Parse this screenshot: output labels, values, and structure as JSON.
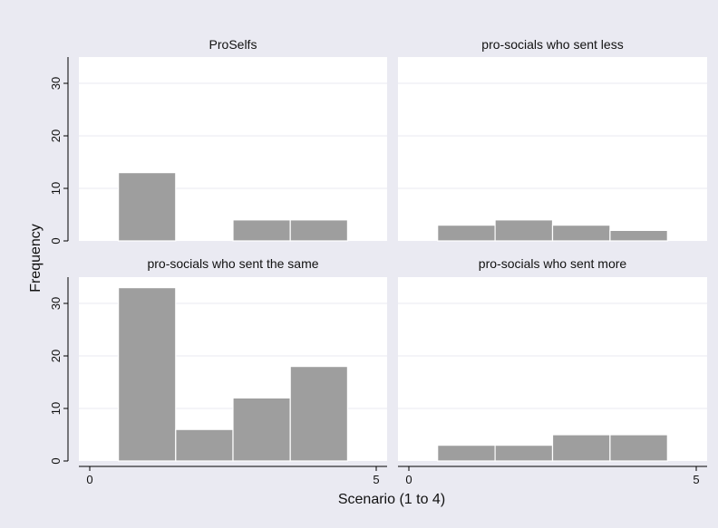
{
  "colors": {
    "background": "#eaeaf2",
    "plot_background": "#ffffff",
    "bar_fill": "#9e9e9e",
    "bar_stroke": "#ffffff",
    "grid": "#eaeaf2",
    "axis": "#000000"
  },
  "chart_data": {
    "type": "bar",
    "xlabel": "Scenario (1 to 4)",
    "ylabel": "Frequency",
    "xlim": [
      0,
      5
    ],
    "ylim": [
      0,
      35
    ],
    "x_ticks": [
      0,
      5
    ],
    "y_ticks": [
      0,
      10,
      20,
      30
    ],
    "bar_width": 1,
    "grid": true,
    "panels": [
      {
        "title": "ProSelfs",
        "x": [
          1,
          2,
          3,
          4
        ],
        "values": [
          13,
          0,
          4,
          4
        ]
      },
      {
        "title": "pro-socials who sent less",
        "x": [
          1,
          2,
          3,
          4
        ],
        "values": [
          3,
          4,
          3,
          2
        ]
      },
      {
        "title": "pro-socials who sent the same",
        "x": [
          1,
          2,
          3,
          4
        ],
        "values": [
          33,
          6,
          12,
          18
        ]
      },
      {
        "title": "pro-socials who sent more",
        "x": [
          1,
          2,
          3,
          4
        ],
        "values": [
          3,
          3,
          5,
          5
        ]
      }
    ]
  }
}
